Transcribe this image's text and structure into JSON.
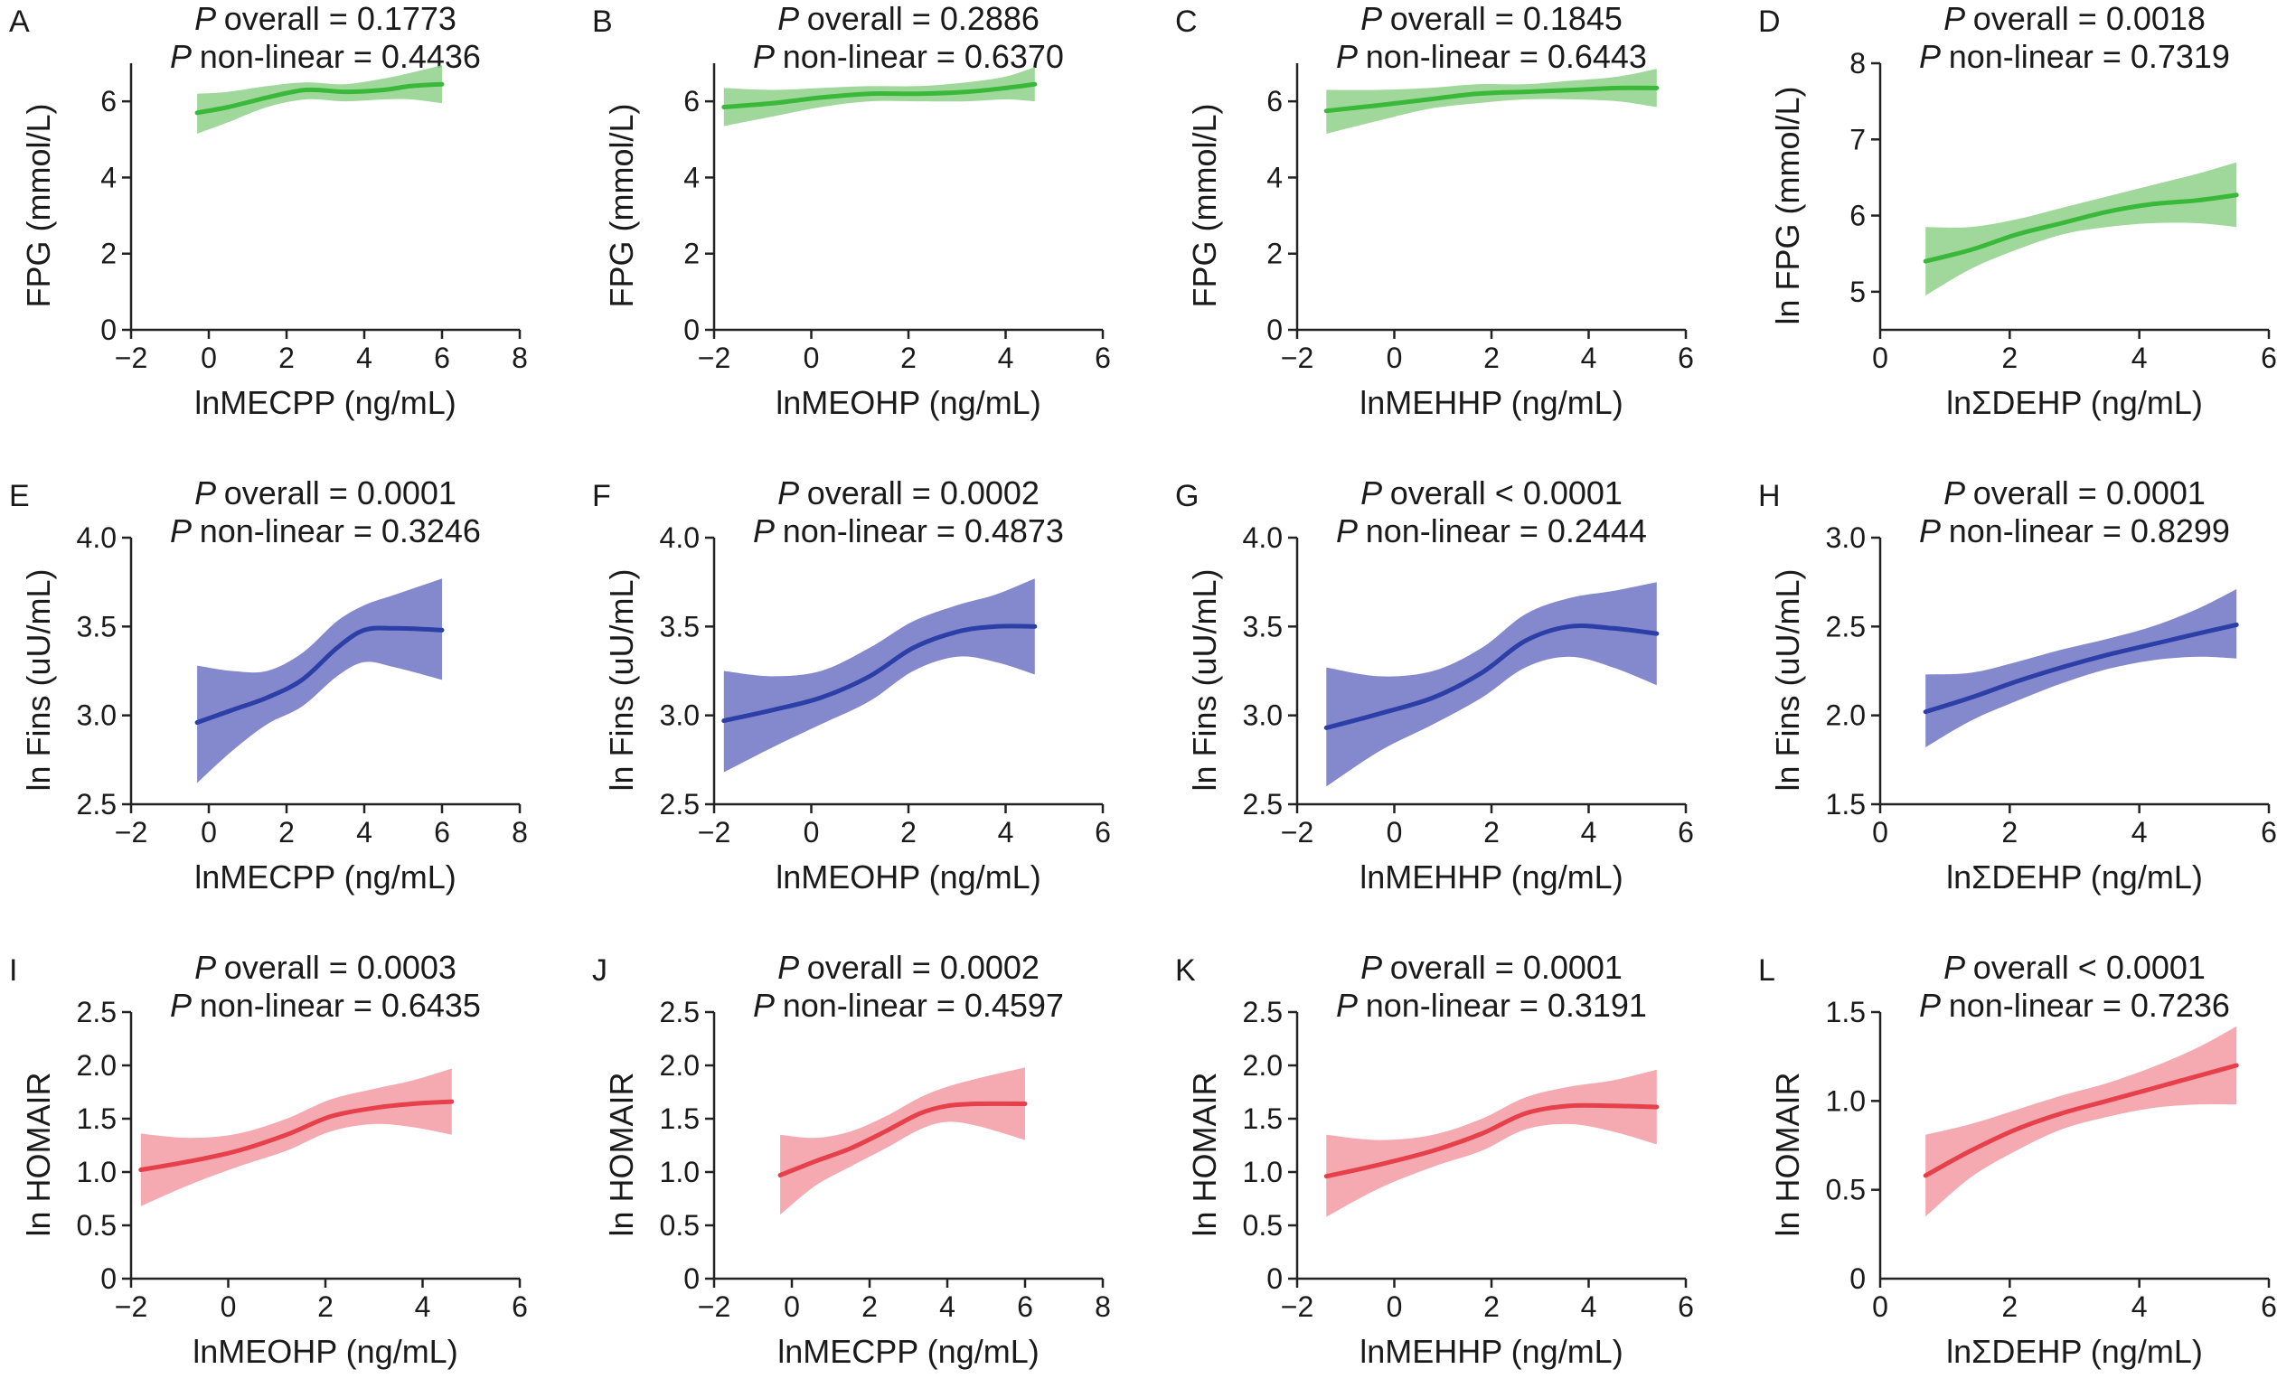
{
  "figure": {
    "colors": {
      "green": "#3ab83a",
      "blue": "#2b3fa6",
      "red": "#e6404a",
      "green_band": "#8fd18a",
      "blue_band": "#6e73c4",
      "red_band": "#f39aa3"
    }
  },
  "chart_data": [
    {
      "panel": "A",
      "type": "line",
      "p_symbol": "P",
      "stat_overall": "overall = 0.1773",
      "stat_nonlinear": "non-linear = 0.4436",
      "xlabel": "lnMECPP (ng/mL)",
      "ylabel": "FPG (mmol/L)",
      "xlim": [
        -2,
        8
      ],
      "ylim": [
        0,
        7
      ],
      "xticks": [
        -2,
        0,
        2,
        4,
        6,
        8
      ],
      "yticks": [
        0,
        2,
        4,
        6
      ],
      "x_tick_labels": [
        "−2",
        "0",
        "2",
        "4",
        "6",
        "8"
      ],
      "y_tick_labels": [
        "0",
        "2",
        "4",
        "6"
      ],
      "color": "green",
      "series": [
        {
          "x": [
            -0.3,
            0.5,
            1.5,
            2.5,
            3.5,
            4.5,
            5.2,
            6.0
          ],
          "y": [
            5.7,
            5.85,
            6.1,
            6.3,
            6.25,
            6.3,
            6.4,
            6.45
          ],
          "lower": [
            5.15,
            5.45,
            5.85,
            6.05,
            6.0,
            6.05,
            6.05,
            5.95
          ],
          "upper": [
            6.2,
            6.25,
            6.4,
            6.5,
            6.45,
            6.6,
            6.75,
            6.95
          ]
        }
      ]
    },
    {
      "panel": "B",
      "type": "line",
      "p_symbol": "P",
      "stat_overall": "overall = 0.2886",
      "stat_nonlinear": "non-linear = 0.6370",
      "xlabel": "lnMEOHP (ng/mL)",
      "ylabel": "FPG (mmol/L)",
      "xlim": [
        -2,
        6
      ],
      "ylim": [
        0,
        7
      ],
      "xticks": [
        -2,
        0,
        2,
        4,
        6
      ],
      "yticks": [
        0,
        2,
        4,
        6
      ],
      "x_tick_labels": [
        "−2",
        "0",
        "2",
        "4",
        "6"
      ],
      "y_tick_labels": [
        "0",
        "2",
        "4",
        "6"
      ],
      "color": "green",
      "series": [
        {
          "x": [
            -1.8,
            -0.8,
            0.2,
            1.2,
            2.2,
            3.2,
            4.0,
            4.6
          ],
          "y": [
            5.85,
            5.95,
            6.1,
            6.2,
            6.2,
            6.25,
            6.35,
            6.45
          ],
          "lower": [
            5.35,
            5.6,
            5.85,
            6.0,
            6.0,
            6.0,
            6.05,
            6.0
          ],
          "upper": [
            6.35,
            6.3,
            6.35,
            6.4,
            6.4,
            6.5,
            6.65,
            6.9
          ]
        }
      ]
    },
    {
      "panel": "C",
      "type": "line",
      "p_symbol": "P",
      "stat_overall": "overall = 0.1845",
      "stat_nonlinear": "non-linear = 0.6443",
      "xlabel": "lnMEHHP (ng/mL)",
      "ylabel": "FPG (mmol/L)",
      "xlim": [
        -2,
        6
      ],
      "ylim": [
        0,
        7
      ],
      "xticks": [
        -2,
        0,
        2,
        4,
        6
      ],
      "yticks": [
        0,
        2,
        4,
        6
      ],
      "x_tick_labels": [
        "−2",
        "0",
        "2",
        "4",
        "6"
      ],
      "y_tick_labels": [
        "0",
        "2",
        "4",
        "6"
      ],
      "color": "green",
      "series": [
        {
          "x": [
            -1.4,
            -0.3,
            0.7,
            1.7,
            2.7,
            3.7,
            4.6,
            5.4
          ],
          "y": [
            5.75,
            5.9,
            6.05,
            6.2,
            6.25,
            6.3,
            6.35,
            6.35
          ],
          "lower": [
            5.15,
            5.5,
            5.8,
            5.95,
            6.05,
            6.05,
            6.0,
            5.85
          ],
          "upper": [
            6.3,
            6.3,
            6.35,
            6.45,
            6.45,
            6.55,
            6.65,
            6.85
          ]
        }
      ]
    },
    {
      "panel": "D",
      "type": "line",
      "p_symbol": "P",
      "stat_overall": "overall = 0.0018",
      "stat_nonlinear": "non-linear = 0.7319",
      "xlabel": "lnΣDEHP (ng/mL)",
      "ylabel": "ln FPG (mmol/L)",
      "xlim": [
        0,
        6
      ],
      "ylim": [
        4.5,
        8
      ],
      "xticks": [
        0,
        2,
        4,
        6
      ],
      "yticks": [
        5,
        6,
        7,
        8
      ],
      "x_tick_labels": [
        "0",
        "2",
        "4",
        "6"
      ],
      "y_tick_labels": [
        "5",
        "6",
        "7",
        "8"
      ],
      "color": "green",
      "series": [
        {
          "x": [
            0.7,
            1.4,
            2.1,
            2.8,
            3.5,
            4.2,
            4.9,
            5.5
          ],
          "y": [
            5.4,
            5.55,
            5.75,
            5.9,
            6.05,
            6.15,
            6.2,
            6.27
          ],
          "lower": [
            4.95,
            5.3,
            5.55,
            5.75,
            5.85,
            5.9,
            5.9,
            5.85
          ],
          "upper": [
            5.85,
            5.85,
            5.95,
            6.1,
            6.25,
            6.4,
            6.55,
            6.7
          ]
        }
      ]
    },
    {
      "panel": "E",
      "type": "line",
      "p_symbol": "P",
      "stat_overall": "overall = 0.0001",
      "stat_nonlinear": "non-linear = 0.3246",
      "xlabel": "lnMECPP (ng/mL)",
      "ylabel": "ln Fins (uU/mL)",
      "xlim": [
        -2,
        8
      ],
      "ylim": [
        2.5,
        4.0
      ],
      "xticks": [
        -2,
        0,
        2,
        4,
        6,
        8
      ],
      "yticks": [
        2.5,
        3.0,
        3.5,
        4.0
      ],
      "x_tick_labels": [
        "−2",
        "0",
        "2",
        "4",
        "6",
        "8"
      ],
      "y_tick_labels": [
        "2.5",
        "3.0",
        "3.5",
        "4.0"
      ],
      "color": "blue",
      "series": [
        {
          "x": [
            -0.3,
            0.6,
            1.5,
            2.4,
            3.3,
            4.0,
            4.8,
            6.0
          ],
          "y": [
            2.96,
            3.03,
            3.1,
            3.2,
            3.38,
            3.48,
            3.49,
            3.48
          ],
          "lower": [
            2.62,
            2.8,
            2.95,
            3.05,
            3.22,
            3.3,
            3.27,
            3.2
          ],
          "upper": [
            3.28,
            3.25,
            3.25,
            3.35,
            3.53,
            3.62,
            3.68,
            3.77
          ]
        }
      ]
    },
    {
      "panel": "F",
      "type": "line",
      "p_symbol": "P",
      "stat_overall": "overall = 0.0002",
      "stat_nonlinear": "non-linear = 0.4873",
      "xlabel": "lnMEOHP (ng/mL)",
      "ylabel": "ln Fins (uU/mL)",
      "xlim": [
        -2,
        6
      ],
      "ylim": [
        2.5,
        4.0
      ],
      "xticks": [
        -2,
        0,
        2,
        4,
        6
      ],
      "yticks": [
        2.5,
        3.0,
        3.5,
        4.0
      ],
      "x_tick_labels": [
        "−2",
        "0",
        "2",
        "4",
        "6"
      ],
      "y_tick_labels": [
        "2.5",
        "3.0",
        "3.5",
        "4.0"
      ],
      "color": "blue",
      "series": [
        {
          "x": [
            -1.8,
            -0.8,
            0.2,
            1.2,
            2.1,
            3.0,
            3.8,
            4.6
          ],
          "y": [
            2.97,
            3.03,
            3.1,
            3.22,
            3.38,
            3.47,
            3.5,
            3.5
          ],
          "lower": [
            2.68,
            2.82,
            2.95,
            3.08,
            3.25,
            3.33,
            3.3,
            3.23
          ],
          "upper": [
            3.25,
            3.22,
            3.25,
            3.38,
            3.53,
            3.62,
            3.68,
            3.77
          ]
        }
      ]
    },
    {
      "panel": "G",
      "type": "line",
      "p_symbol": "P",
      "stat_overall": "overall < 0.0001",
      "stat_nonlinear": "non-linear = 0.2444",
      "xlabel": "lnMEHHP (ng/mL)",
      "ylabel": "ln Fins (uU/mL)",
      "xlim": [
        -2,
        6
      ],
      "ylim": [
        2.5,
        4.0
      ],
      "xticks": [
        -2,
        0,
        2,
        4,
        6
      ],
      "yticks": [
        2.5,
        3.0,
        3.5,
        4.0
      ],
      "x_tick_labels": [
        "−2",
        "0",
        "2",
        "4",
        "6"
      ],
      "y_tick_labels": [
        "2.5",
        "3.0",
        "3.5",
        "4.0"
      ],
      "color": "blue",
      "series": [
        {
          "x": [
            -1.4,
            -0.3,
            0.8,
            1.8,
            2.7,
            3.6,
            4.5,
            5.4
          ],
          "y": [
            2.93,
            3.01,
            3.1,
            3.24,
            3.42,
            3.5,
            3.49,
            3.46
          ],
          "lower": [
            2.6,
            2.8,
            2.95,
            3.1,
            3.27,
            3.33,
            3.27,
            3.17
          ],
          "upper": [
            3.27,
            3.22,
            3.25,
            3.38,
            3.57,
            3.66,
            3.7,
            3.75
          ]
        }
      ]
    },
    {
      "panel": "H",
      "type": "line",
      "p_symbol": "P",
      "stat_overall": "overall = 0.0001",
      "stat_nonlinear": "non-linear = 0.8299",
      "xlabel": "lnΣDEHP (ng/mL)",
      "ylabel": "ln Fins (uU/mL)",
      "xlim": [
        0,
        6
      ],
      "ylim": [
        1.5,
        3.0
      ],
      "xticks": [
        0,
        2,
        4,
        6
      ],
      "yticks": [
        1.5,
        2.0,
        2.5,
        3.0
      ],
      "x_tick_labels": [
        "0",
        "2",
        "4",
        "6"
      ],
      "y_tick_labels": [
        "1.5",
        "2.0",
        "2.5",
        "3.0"
      ],
      "color": "blue",
      "series": [
        {
          "x": [
            0.7,
            1.4,
            2.1,
            2.8,
            3.5,
            4.2,
            4.9,
            5.5
          ],
          "y": [
            2.02,
            2.1,
            2.19,
            2.27,
            2.34,
            2.4,
            2.46,
            2.51
          ],
          "lower": [
            1.82,
            1.97,
            2.08,
            2.18,
            2.26,
            2.31,
            2.33,
            2.32
          ],
          "upper": [
            2.23,
            2.24,
            2.3,
            2.37,
            2.43,
            2.5,
            2.6,
            2.71
          ]
        }
      ]
    },
    {
      "panel": "I",
      "type": "line",
      "p_symbol": "P",
      "stat_overall": "overall = 0.0003",
      "stat_nonlinear": "non-linear = 0.6435",
      "xlabel": "lnMEOHP (ng/mL)",
      "ylabel": "ln HOMAIR",
      "xlim": [
        -2,
        6
      ],
      "ylim": [
        0,
        2.5
      ],
      "xticks": [
        -2,
        0,
        2,
        4,
        6
      ],
      "yticks": [
        0,
        0.5,
        1.0,
        1.5,
        2.0,
        2.5
      ],
      "x_tick_labels": [
        "−2",
        "0",
        "2",
        "4",
        "6"
      ],
      "y_tick_labels": [
        "0",
        "0.5",
        "1.0",
        "1.5",
        "2.0",
        "2.5"
      ],
      "color": "red",
      "series": [
        {
          "x": [
            -1.8,
            -0.8,
            0.2,
            1.2,
            2.1,
            3.0,
            3.8,
            4.6
          ],
          "y": [
            1.02,
            1.1,
            1.2,
            1.35,
            1.52,
            1.6,
            1.64,
            1.66
          ],
          "lower": [
            0.68,
            0.88,
            1.05,
            1.2,
            1.38,
            1.45,
            1.42,
            1.35
          ],
          "upper": [
            1.36,
            1.32,
            1.36,
            1.5,
            1.68,
            1.78,
            1.86,
            1.97
          ]
        }
      ]
    },
    {
      "panel": "J",
      "type": "line",
      "p_symbol": "P",
      "stat_overall": "overall = 0.0002",
      "stat_nonlinear": "non-linear = 0.4597",
      "xlabel": "lnMECPP (ng/mL)",
      "ylabel": "ln HOMAIR",
      "xlim": [
        -2,
        8
      ],
      "ylim": [
        0,
        2.5
      ],
      "xticks": [
        -2,
        0,
        2,
        4,
        6,
        8
      ],
      "yticks": [
        0,
        0.5,
        1.0,
        1.5,
        2.0,
        2.5
      ],
      "x_tick_labels": [
        "−2",
        "0",
        "2",
        "4",
        "6",
        "8"
      ],
      "y_tick_labels": [
        "0",
        "0.5",
        "1.0",
        "1.5",
        "2.0",
        "2.5"
      ],
      "color": "red",
      "series": [
        {
          "x": [
            -0.3,
            0.6,
            1.5,
            2.4,
            3.3,
            4.0,
            4.8,
            6.0
          ],
          "y": [
            0.97,
            1.1,
            1.22,
            1.38,
            1.55,
            1.62,
            1.64,
            1.64
          ],
          "lower": [
            0.6,
            0.87,
            1.05,
            1.22,
            1.4,
            1.47,
            1.43,
            1.3
          ],
          "upper": [
            1.35,
            1.32,
            1.38,
            1.52,
            1.7,
            1.8,
            1.88,
            1.98
          ]
        }
      ]
    },
    {
      "panel": "K",
      "type": "line",
      "p_symbol": "P",
      "stat_overall": "overall = 0.0001",
      "stat_nonlinear": "non-linear = 0.3191",
      "xlabel": "lnMEHHP (ng/mL)",
      "ylabel": "ln HOMAIR",
      "xlim": [
        -2,
        6
      ],
      "ylim": [
        0,
        2.5
      ],
      "xticks": [
        -2,
        0,
        2,
        4,
        6
      ],
      "yticks": [
        0,
        0.5,
        1.0,
        1.5,
        2.0,
        2.5
      ],
      "x_tick_labels": [
        "−2",
        "0",
        "2",
        "4",
        "6"
      ],
      "y_tick_labels": [
        "0",
        "0.5",
        "1.0",
        "1.5",
        "2.0",
        "2.5"
      ],
      "color": "red",
      "series": [
        {
          "x": [
            -1.4,
            -0.3,
            0.8,
            1.8,
            2.7,
            3.6,
            4.5,
            5.4
          ],
          "y": [
            0.96,
            1.07,
            1.2,
            1.36,
            1.55,
            1.62,
            1.62,
            1.61
          ],
          "lower": [
            0.58,
            0.85,
            1.05,
            1.2,
            1.4,
            1.45,
            1.38,
            1.26
          ],
          "upper": [
            1.35,
            1.3,
            1.35,
            1.5,
            1.7,
            1.8,
            1.86,
            1.96
          ]
        }
      ]
    },
    {
      "panel": "L",
      "type": "line",
      "p_symbol": "P",
      "stat_overall": "overall < 0.0001",
      "stat_nonlinear": "non-linear = 0.7236",
      "xlabel": "lnΣDEHP (ng/mL)",
      "ylabel": "ln HOMAIR",
      "xlim": [
        0,
        6
      ],
      "ylim": [
        0,
        1.5
      ],
      "xticks": [
        0,
        2,
        4,
        6
      ],
      "yticks": [
        0.5,
        1.0,
        1.5
      ],
      "x_tick_labels": [
        "0",
        "2",
        "4",
        "6"
      ],
      "y_tick_labels": [
        "0.5",
        "1.0",
        "1.5"
      ],
      "origin_label": "0",
      "color": "red",
      "series": [
        {
          "x": [
            0.7,
            1.4,
            2.1,
            2.8,
            3.5,
            4.2,
            4.9,
            5.5
          ],
          "y": [
            0.58,
            0.72,
            0.84,
            0.93,
            1.0,
            1.07,
            1.14,
            1.2
          ],
          "lower": [
            0.35,
            0.57,
            0.72,
            0.84,
            0.91,
            0.96,
            0.98,
            0.98
          ],
          "upper": [
            0.81,
            0.87,
            0.95,
            1.03,
            1.1,
            1.19,
            1.3,
            1.42
          ]
        }
      ]
    }
  ]
}
